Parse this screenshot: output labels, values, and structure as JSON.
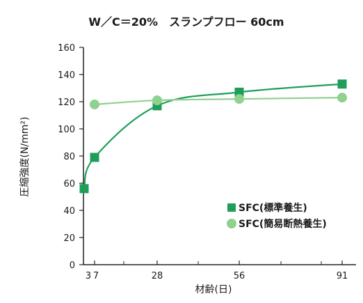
{
  "chart_data": {
    "type": "line",
    "title": "W／C＝20%　スランプフロー 60cm",
    "xlabel": "材齢(日)",
    "ylabel": "圧縮強度(N/mm²)",
    "ylim": [
      0,
      160
    ],
    "yticks": [
      0,
      20,
      40,
      60,
      80,
      100,
      120,
      140,
      160
    ],
    "x_tick_labels": [
      "3",
      "7",
      "28",
      "56",
      "91"
    ],
    "categories": [
      "3",
      "7",
      "28",
      "56",
      "91"
    ],
    "grid": false,
    "legend_position": "bottom-right",
    "series": [
      {
        "name": "SFC(標準養生)",
        "marker": "square",
        "color": "#1f9e5a",
        "values": [
          56,
          79,
          117,
          127,
          133
        ]
      },
      {
        "name": "SFC(簡易断熱養生)",
        "marker": "circle",
        "color": "#8fd18f",
        "values": [
          null,
          118,
          121,
          122,
          123
        ]
      }
    ]
  }
}
